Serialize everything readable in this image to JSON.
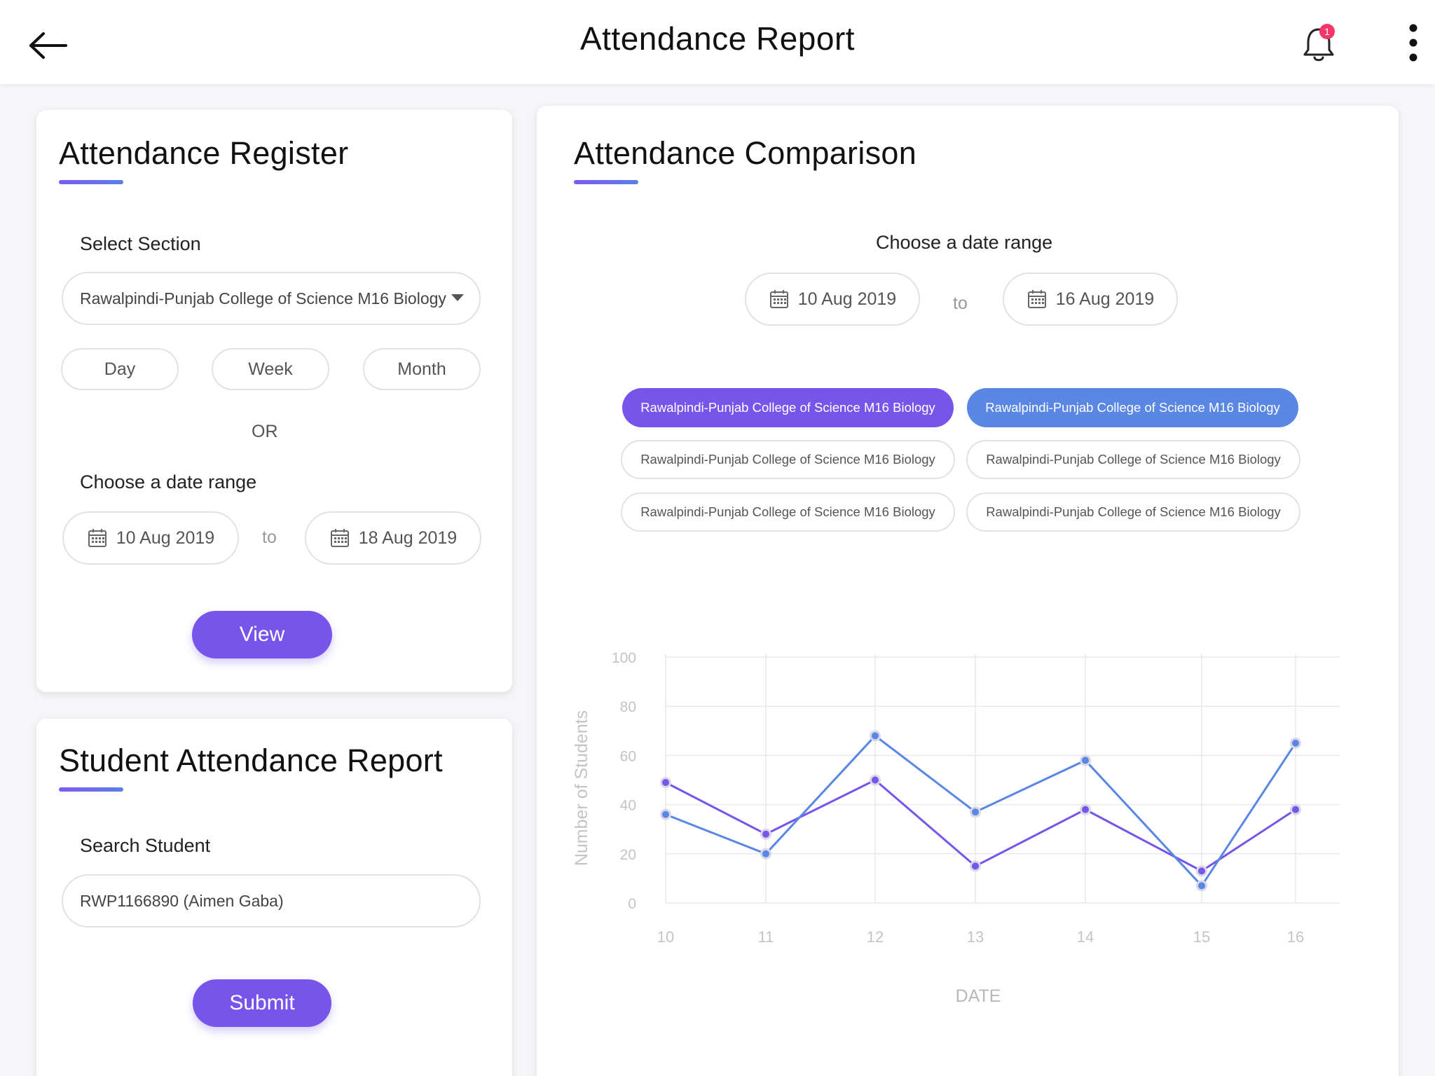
{
  "header": {
    "title": "Attendance Report",
    "notification_count": "1",
    "icons": {
      "back": "back-arrow-icon",
      "notifications": "bell-icon",
      "more": "more-vertical-icon"
    }
  },
  "register": {
    "title": "Attendance Register",
    "section_label": "Select Section",
    "section_value": "Rawalpindi-Punjab College of Science M16 Biology",
    "period_options": [
      "Day",
      "Week",
      "Month"
    ],
    "or_text": "OR",
    "date_range_label": "Choose a date range",
    "from_date": "10 Aug 2019",
    "to_text": "to",
    "to_date": "18 Aug 2019",
    "view_label": "View"
  },
  "student": {
    "title": "Student Attendance Report",
    "search_label": "Search Student",
    "search_value": "RWP1166890 (Aimen Gaba)",
    "submit_label": "Submit"
  },
  "comparison": {
    "title": "Attendance Comparison",
    "date_range_label": "Choose a date range",
    "from_date": "10 Aug 2019",
    "to_text": "to",
    "to_date": "16 Aug 2019",
    "chips": [
      {
        "label": "Rawalpindi-Punjab College of Science M16 Biology",
        "state": "selected-purple"
      },
      {
        "label": "Rawalpindi-Punjab College of Science M16 Biology",
        "state": "selected-blue"
      },
      {
        "label": "Rawalpindi-Punjab College of Science M16 Biology",
        "state": "unselected"
      },
      {
        "label": "Rawalpindi-Punjab College of Science M16 Biology",
        "state": "unselected"
      },
      {
        "label": "Rawalpindi-Punjab College of Science M16 Biology",
        "state": "unselected"
      },
      {
        "label": "Rawalpindi-Punjab College of Science M16 Biology",
        "state": "unselected"
      }
    ]
  },
  "colors": {
    "accent_purple": "#7755ea",
    "accent_blue": "#5a86e4",
    "badge": "#f4356a"
  },
  "chart_data": {
    "type": "line",
    "x": [
      "10",
      "11",
      "12",
      "13",
      "14",
      "15",
      "16"
    ],
    "xlabel": "DATE",
    "ylabel": "Number of Students",
    "ylim": [
      0,
      100
    ],
    "yticks": [
      0,
      20,
      40,
      60,
      80,
      100
    ],
    "grid": true,
    "series": [
      {
        "color": "#7755ea",
        "values": [
          49,
          28,
          50,
          15,
          38,
          13,
          38
        ]
      },
      {
        "color": "#5a86e4",
        "values": [
          36,
          20,
          68,
          37,
          58,
          7,
          65
        ]
      }
    ]
  }
}
